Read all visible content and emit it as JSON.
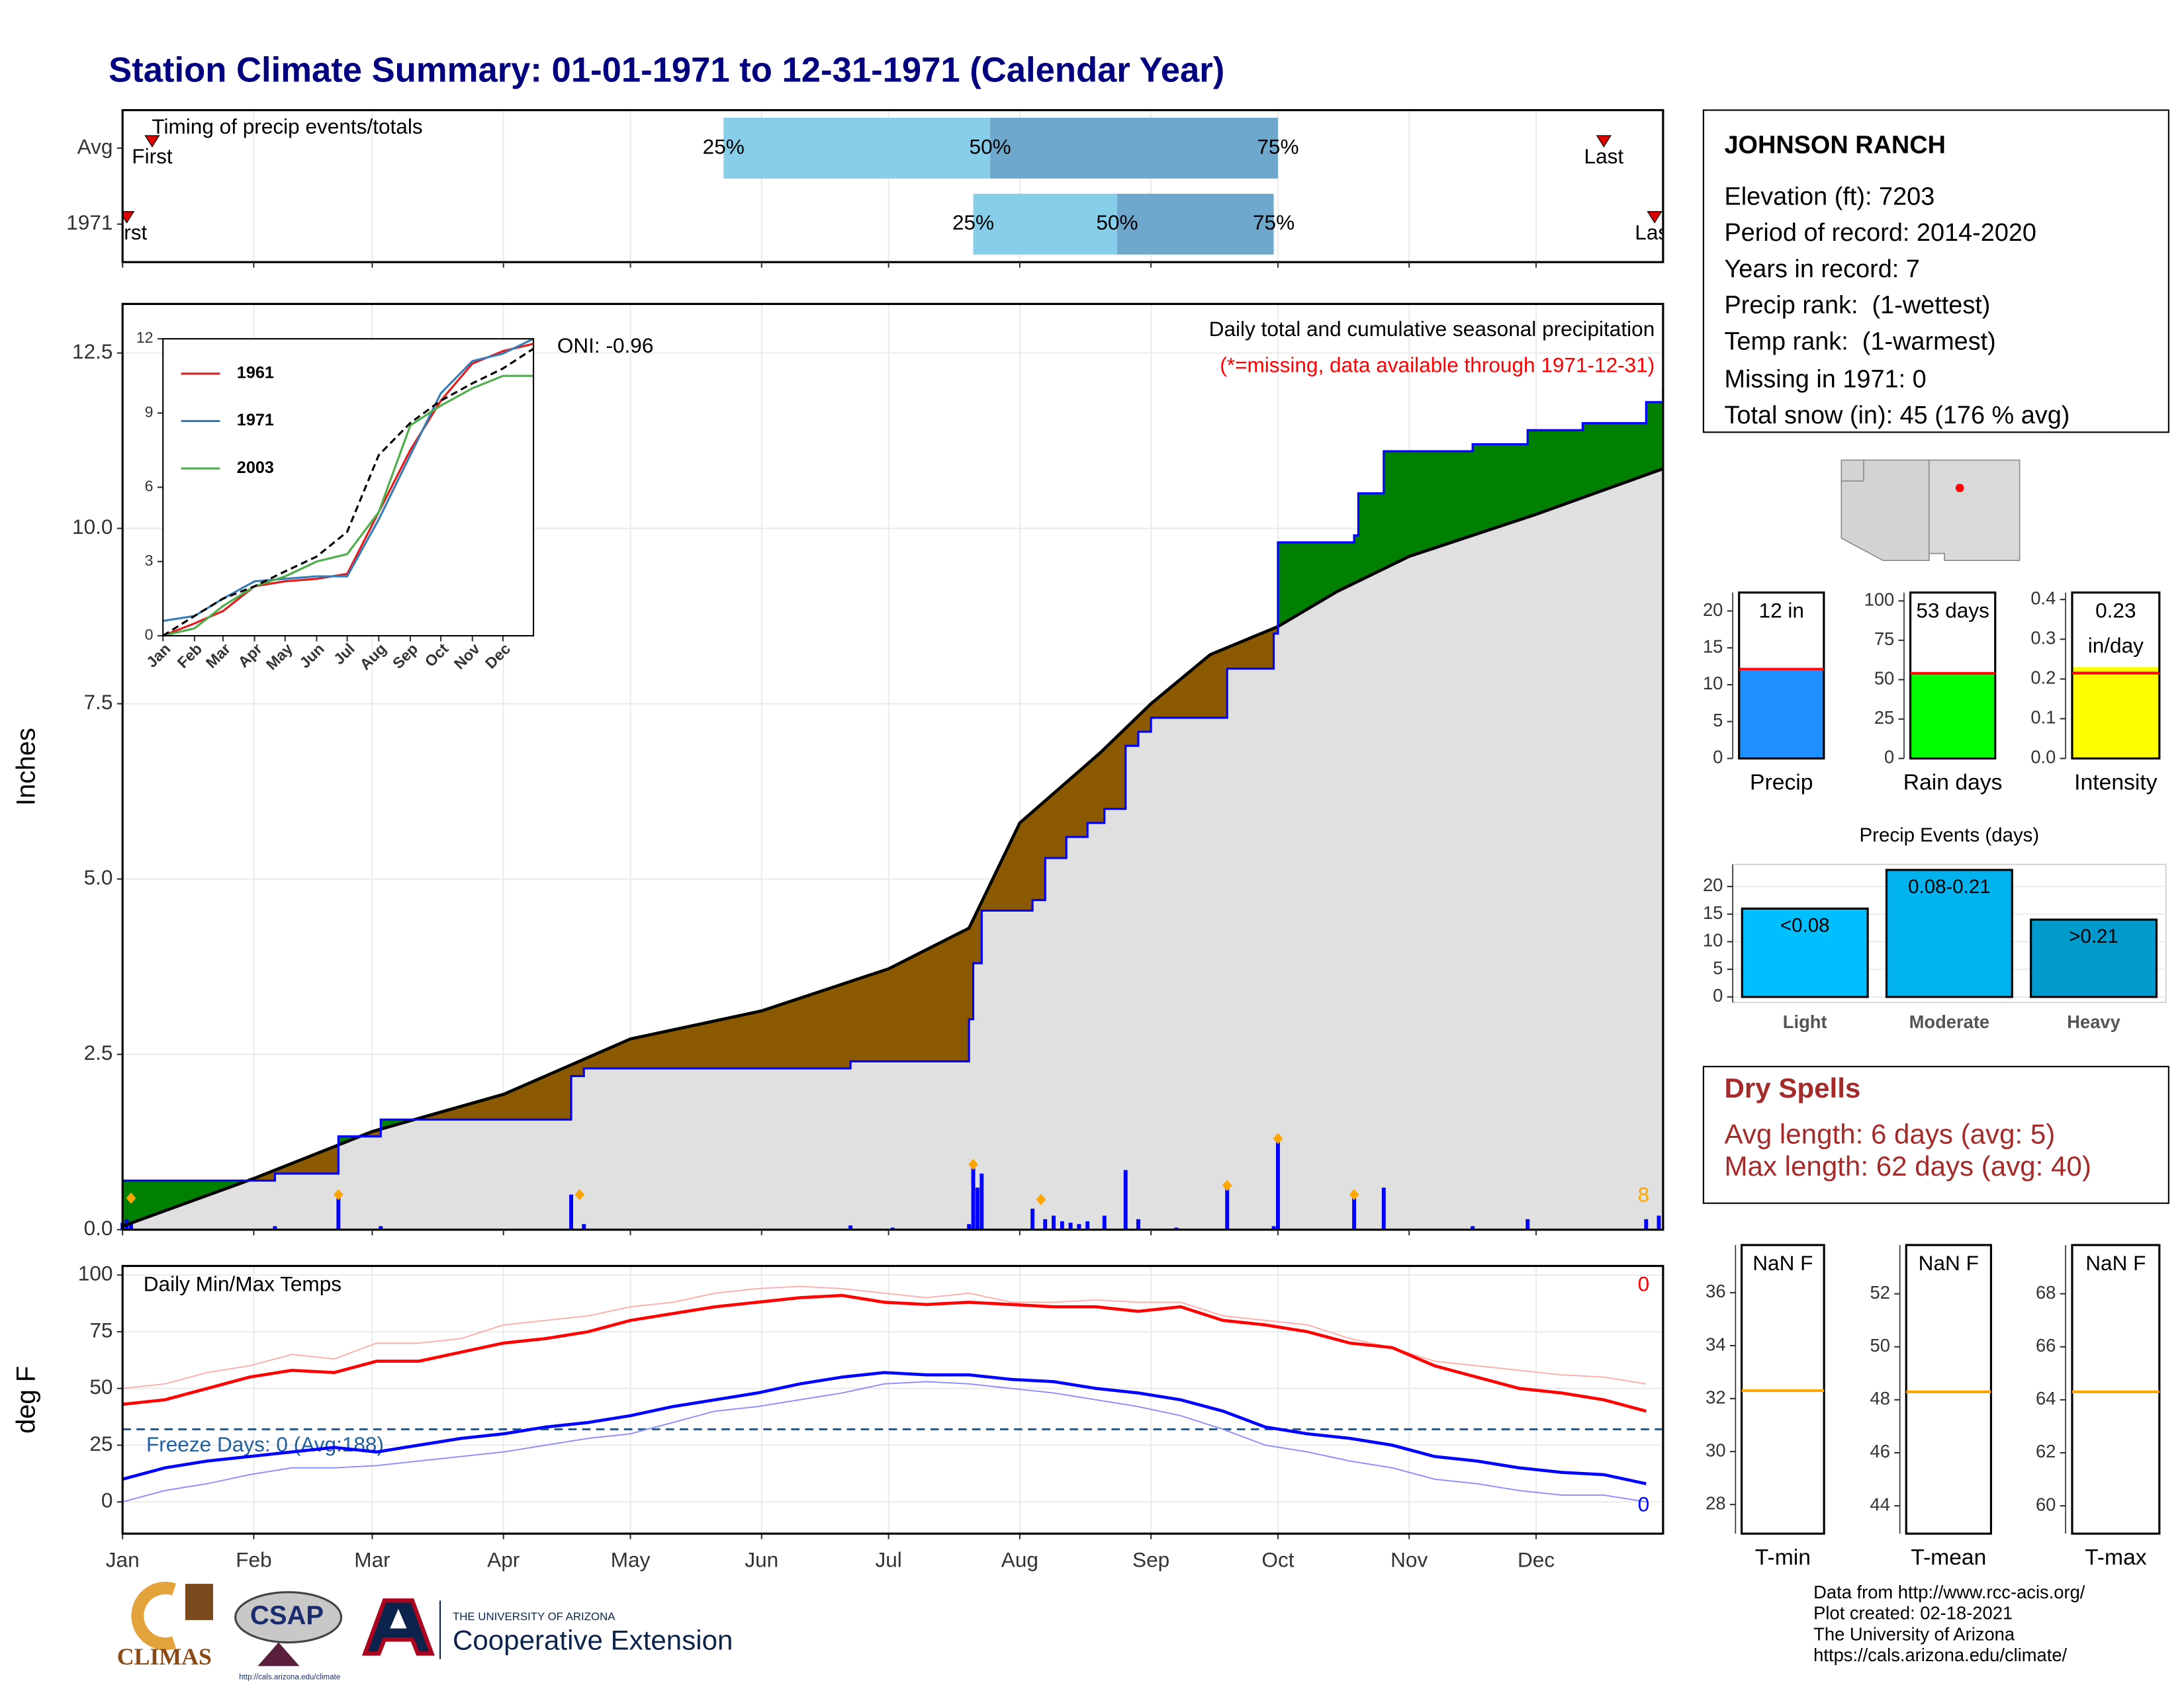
{
  "title": "Station Climate Summary: 01-01-1971 to 12-31-1971 (Calendar Year)",
  "station": {
    "name": "JOHNSON RANCH",
    "lines": [
      "Elevation (ft): 7203",
      "Period of record: 2014-2020",
      "Years in record: 7",
      "Precip rank:  (1-wettest)",
      "Temp rank:  (1-warmest)",
      "Missing in 1971: 0",
      "Total snow (in): 45 (176 % avg)"
    ]
  },
  "dry_spells": {
    "title": "Dry Spells",
    "lines": [
      "Avg length: 6 days (avg: 5)",
      "Max length: 62 days (avg: 40)"
    ]
  },
  "footer": [
    "Data from http://www.rcc-acis.org/",
    "Plot created: 02-18-2021",
    "The University of Arizona",
    "https://cals.arizona.edu/climate/"
  ],
  "logos": {
    "climas": "CLIMAS",
    "csap": "CSAP",
    "csap_url": "http://cals.arizona.edu/climate",
    "university": "THE UNIVERSITY OF ARIZONA",
    "extension": "Cooperative Extension"
  },
  "chart_data": [
    {
      "type": "range",
      "title": "Timing of precip events/totals",
      "xlim": [
        1,
        365
      ],
      "quantile_labels": [
        "25%",
        "50%",
        "75%"
      ],
      "first_label": "First",
      "last_label": "Last",
      "light_color": "#87ceeb",
      "dark_color": "#6fa8cd",
      "marker_color": "#e00000",
      "rows": [
        {
          "label": "Avg",
          "first": 8,
          "q25": 143,
          "q50": 206,
          "q75": 274,
          "last": 351
        },
        {
          "label": "1971",
          "first": 2,
          "q25": 202,
          "q50": 236,
          "q75": 273,
          "last": 363
        }
      ]
    },
    {
      "type": "area",
      "title": "Daily total and cumulative seasonal precipitation",
      "subtitle": "(*=missing, data available through 1971-12-31)",
      "annotation": "ONI: -0.96",
      "count_label": 8,
      "ylabel": "Inches",
      "xlim": [
        1,
        365
      ],
      "ylim": [
        0,
        13.2
      ],
      "yticks": [
        {
          "value": 0,
          "label": "0.0"
        },
        2.5,
        {
          "value": 5,
          "label": "5.0"
        },
        7.5,
        {
          "value": 10,
          "label": "10.0"
        },
        12.5
      ],
      "grid": true,
      "surplus_color": "#008000",
      "deficit_color": "#8b5a00",
      "area_color": "#e0e0e0",
      "series": [
        {
          "kind": "step",
          "color": "#0000ff",
          "x": [
            1,
            37,
            52,
            62,
            107,
            110,
            173,
            201,
            202,
            204,
            216,
            219,
            224,
            229,
            233,
            238,
            241,
            244,
            262,
            273,
            274,
            292,
            293,
            299,
            320,
            333,
            346,
            361,
            365
          ],
          "values": [
            0.7,
            0.8,
            1.33,
            1.57,
            2.19,
            2.3,
            2.4,
            3.0,
            3.8,
            4.55,
            4.7,
            5.3,
            5.6,
            5.8,
            6.0,
            6.9,
            7.1,
            7.3,
            8.0,
            8.5,
            9.8,
            9.9,
            10.5,
            11.1,
            11.2,
            11.4,
            11.5,
            11.8,
            12.0
          ]
        },
        {
          "kind": "line",
          "color": "#000000",
          "x": [
            1,
            32,
            60,
            91,
            121,
            152,
            182,
            201,
            213,
            232,
            244,
            258,
            274,
            288,
            305,
            335,
            365
          ],
          "values": [
            0.05,
            0.73,
            1.4,
            1.93,
            2.72,
            3.12,
            3.72,
            4.3,
            5.8,
            6.8,
            7.5,
            8.2,
            8.6,
            9.1,
            9.6,
            10.2,
            10.85
          ]
        },
        {
          "kind": "bar",
          "color": "#0000ff",
          "x": [
            1,
            2,
            3,
            37,
            52,
            62,
            107,
            110,
            173,
            183,
            201,
            202,
            203,
            204,
            216,
            219,
            221,
            223,
            225,
            227,
            229,
            233,
            238,
            241,
            250,
            262,
            273,
            274,
            292,
            299,
            320,
            333,
            361,
            364
          ],
          "values": [
            0.1,
            0.15,
            0.08,
            0.05,
            0.5,
            0.05,
            0.5,
            0.08,
            0.06,
            0.03,
            0.08,
            0.9,
            0.6,
            0.8,
            0.3,
            0.15,
            0.2,
            0.12,
            0.1,
            0.08,
            0.12,
            0.2,
            0.85,
            0.15,
            0.03,
            0.6,
            0.05,
            1.3,
            0.5,
            0.6,
            0.05,
            0.15,
            0.15,
            0.2
          ]
        },
        {
          "kind": "marker",
          "color": "#ffa500",
          "x": [
            3,
            52,
            109,
            202,
            218,
            262,
            274,
            292
          ],
          "values": [
            0.45,
            0.5,
            0.5,
            0.93,
            0.43,
            0.63,
            1.3,
            0.5
          ]
        }
      ]
    },
    {
      "type": "line",
      "title": "Daily Min/Max Temps",
      "ylabel": "deg F",
      "xlim": [
        1,
        365
      ],
      "ylim": [
        -14,
        104
      ],
      "yticks": [
        0,
        25,
        50,
        75,
        100
      ],
      "grid": true,
      "max_count": 0,
      "min_count": 0,
      "xticks": [
        {
          "value": 1,
          "label": "Jan"
        },
        {
          "value": 32,
          "label": "Feb"
        },
        {
          "value": 60,
          "label": "Mar"
        },
        {
          "value": 91,
          "label": "Apr"
        },
        {
          "value": 121,
          "label": "May"
        },
        {
          "value": 152,
          "label": "Jun"
        },
        {
          "value": 182,
          "label": "Jul"
        },
        {
          "value": 213,
          "label": "Aug"
        },
        {
          "value": 244,
          "label": "Sep"
        },
        {
          "value": 274,
          "label": "Oct"
        },
        {
          "value": 305,
          "label": "Nov"
        },
        {
          "value": 335,
          "label": "Dec"
        }
      ],
      "freeze": {
        "value": 32,
        "label": "Freeze Days: 0 (Avg:188)",
        "color": "#1f5fa0"
      },
      "x": [
        1,
        11,
        21,
        31,
        41,
        51,
        61,
        71,
        81,
        91,
        101,
        111,
        121,
        131,
        141,
        151,
        161,
        171,
        181,
        191,
        201,
        211,
        221,
        231,
        241,
        251,
        261,
        271,
        281,
        291,
        301,
        311,
        321,
        331,
        341,
        351,
        361
      ],
      "series": [
        {
          "color": "#ffadad",
          "width": 0.9,
          "values": [
            50,
            52,
            57,
            60,
            65,
            63,
            70,
            70,
            72,
            78,
            80,
            82,
            86,
            88,
            92,
            94,
            95,
            94,
            92,
            90,
            92,
            88,
            88,
            89,
            88,
            88,
            82,
            80,
            78,
            72,
            68,
            62,
            60,
            58,
            56,
            55,
            52
          ]
        },
        {
          "color": "#ff0000",
          "width": 2.2,
          "values": [
            43,
            45,
            50,
            55,
            58,
            57,
            62,
            62,
            66,
            70,
            72,
            75,
            80,
            83,
            86,
            88,
            90,
            91,
            88,
            87,
            88,
            87,
            86,
            86,
            84,
            86,
            80,
            78,
            75,
            70,
            68,
            60,
            55,
            50,
            48,
            45,
            40
          ]
        },
        {
          "color": "#8c8cff",
          "width": 0.9,
          "values": [
            0,
            5,
            8,
            12,
            15,
            15,
            16,
            18,
            20,
            22,
            25,
            28,
            30,
            35,
            40,
            42,
            45,
            48,
            52,
            53,
            52,
            50,
            48,
            45,
            42,
            38,
            32,
            25,
            22,
            18,
            15,
            10,
            8,
            5,
            3,
            3,
            0
          ]
        },
        {
          "color": "#0000ff",
          "width": 2.2,
          "values": [
            10,
            15,
            18,
            20,
            22,
            24,
            22,
            25,
            28,
            30,
            33,
            35,
            38,
            42,
            45,
            48,
            52,
            55,
            57,
            56,
            56,
            54,
            53,
            50,
            48,
            45,
            40,
            33,
            30,
            28,
            25,
            20,
            18,
            15,
            13,
            12,
            8
          ]
        }
      ]
    },
    {
      "type": "line",
      "xlim": [
        1,
        365
      ],
      "ylim": [
        0,
        12
      ],
      "yticks": [
        0,
        3,
        6,
        9,
        12
      ],
      "xtick_rotation": 45,
      "legend": "top-left",
      "xticks": [
        {
          "value": 1,
          "label": "Jan"
        },
        {
          "value": 32,
          "label": "Feb"
        },
        {
          "value": 60,
          "label": "Mar"
        },
        {
          "value": 91,
          "label": "Apr"
        },
        {
          "value": 121,
          "label": "May"
        },
        {
          "value": 152,
          "label": "Jun"
        },
        {
          "value": 182,
          "label": "Jul"
        },
        {
          "value": 213,
          "label": "Aug"
        },
        {
          "value": 244,
          "label": "Sep"
        },
        {
          "value": 274,
          "label": "Oct"
        },
        {
          "value": 305,
          "label": "Nov"
        },
        {
          "value": 335,
          "label": "Dec"
        }
      ],
      "x": [
        1,
        32,
        60,
        91,
        121,
        152,
        182,
        213,
        244,
        274,
        305,
        335,
        365
      ],
      "series": [
        {
          "name": "1961",
          "color": "#e41a1c",
          "width": 1.5,
          "values": [
            0,
            0.5,
            1,
            2,
            2.2,
            2.3,
            2.5,
            5,
            7.5,
            9.5,
            11,
            11.5,
            11.8
          ]
        },
        {
          "name": "1971",
          "color": "#377eb8",
          "width": 1.5,
          "values": [
            0.6,
            0.8,
            1.5,
            2.2,
            2.3,
            2.4,
            2.4,
            4.7,
            7.3,
            9.8,
            11.1,
            11.4,
            12
          ]
        },
        {
          "name": "2003",
          "color": "#4daf4a",
          "width": 1.5,
          "values": [
            0,
            0.3,
            1.2,
            2,
            2.4,
            3,
            3.3,
            5,
            8.5,
            9.3,
            10,
            10.5,
            10.5
          ]
        },
        {
          "color": "#000000",
          "width": 1.5,
          "dash": true,
          "values": [
            0,
            0.8,
            1.5,
            2,
            2.6,
            3.2,
            4.2,
            7.3,
            8.6,
            9.5,
            10.2,
            10.8,
            11.6
          ]
        }
      ]
    },
    {
      "type": "bar",
      "xlabel": "Precip",
      "ylim": [
        0,
        22.5
      ],
      "yticks": [
        0,
        5,
        10,
        15,
        20
      ],
      "values": [
        11.9
      ],
      "value_labels": [
        "12 in"
      ],
      "color": "#1e90ff",
      "avg": 12.1,
      "avg_color": "#ff0000"
    },
    {
      "type": "bar",
      "xlabel": "Rain days",
      "ylim": [
        0,
        105.3
      ],
      "yticks": [
        0,
        25,
        50,
        75,
        100
      ],
      "values": [
        53
      ],
      "value_labels": [
        "53 days"
      ],
      "color": "#00ff00",
      "avg": 54,
      "avg_color": "#ff0000"
    },
    {
      "type": "bar",
      "xlabel": "Intensity",
      "ylim": [
        0,
        0.4175
      ],
      "yticks": [
        {
          "value": 0,
          "label": "0.0"
        },
        0.1,
        0.2,
        0.3,
        0.4
      ],
      "values": [
        0.23
      ],
      "value_labels": [
        "0.23 in/day"
      ],
      "color": "#ffff00",
      "avg": 0.215,
      "avg_color": "#ff0000"
    },
    {
      "type": "bar",
      "title": "Precip Events (days)",
      "categories": [
        "Light",
        "Moderate",
        "Heavy"
      ],
      "bar_labels": [
        "<0.08",
        "0.08-0.21",
        ">0.21"
      ],
      "values": [
        16,
        23,
        14
      ],
      "colors": [
        "#00bfff",
        "#00b2ee",
        "#009acd"
      ],
      "ylim": [
        -1,
        24
      ],
      "yticks": [
        0,
        5,
        10,
        15,
        20
      ],
      "grid": true
    },
    {
      "type": "bar",
      "xlabel": "T-min",
      "ylim": [
        26.9,
        37.8
      ],
      "yticks": [
        28,
        30,
        32,
        34,
        36
      ],
      "values": [
        null
      ],
      "value_labels": [
        "NaN F"
      ],
      "color": "#1e90ff",
      "avg": 32.3,
      "avg_color": "#ffa500"
    },
    {
      "type": "bar",
      "xlabel": "T-mean",
      "ylim": [
        42.95,
        53.84
      ],
      "yticks": [
        44,
        46,
        48,
        50,
        52
      ],
      "values": [
        null
      ],
      "value_labels": [
        "NaN F"
      ],
      "color": "#1e90ff",
      "avg": 48.3,
      "avg_color": "#ffa500"
    },
    {
      "type": "bar",
      "xlabel": "T-max",
      "ylim": [
        58.95,
        69.84
      ],
      "yticks": [
        60,
        62,
        64,
        66,
        68
      ],
      "values": [
        null
      ],
      "value_labels": [
        "NaN F"
      ],
      "color": "#1e90ff",
      "avg": 64.3,
      "avg_color": "#ffa500"
    }
  ]
}
